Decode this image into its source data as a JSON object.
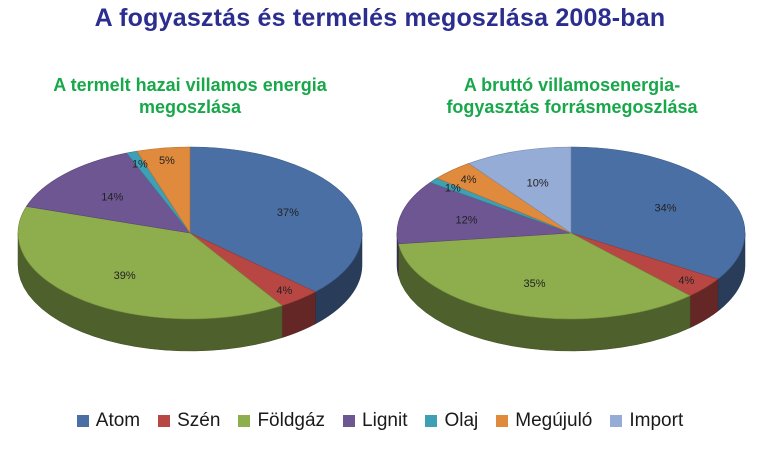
{
  "title": "A fogyasztás és termelés megoszlása 2008-ban",
  "legend": [
    {
      "label": "Atom",
      "color": "#4a6fa5"
    },
    {
      "label": "Szén",
      "color": "#b84744"
    },
    {
      "label": "Földgáz",
      "color": "#8eae4e"
    },
    {
      "label": "Lignit",
      "color": "#6e5693"
    },
    {
      "label": "Olaj",
      "color": "#3f9fb4"
    },
    {
      "label": "Megújuló",
      "color": "#e08a3d"
    },
    {
      "label": "Import",
      "color": "#95acd6"
    }
  ],
  "chart_data": [
    {
      "type": "pie",
      "title": "A termelt hazai villamos energia megoszlása",
      "categories": [
        "Atom",
        "Szén",
        "Földgáz",
        "Lignit",
        "Olaj",
        "Megújuló"
      ],
      "values": [
        37,
        4,
        39,
        14,
        1,
        5
      ],
      "labels": [
        "37%",
        "4%",
        "39%",
        "14%",
        "1%",
        "5%"
      ]
    },
    {
      "type": "pie",
      "title": "A bruttó villamosenergia-fogyasztás forrásmegoszlása",
      "categories": [
        "Atom",
        "Szén",
        "Földgáz",
        "Lignit",
        "Olaj",
        "Megújuló",
        "Import"
      ],
      "values": [
        34,
        4,
        35,
        12,
        1,
        4,
        10
      ],
      "labels": [
        "34%",
        "4%",
        "35%",
        "12%",
        "1%",
        "4%",
        "10%"
      ]
    }
  ]
}
